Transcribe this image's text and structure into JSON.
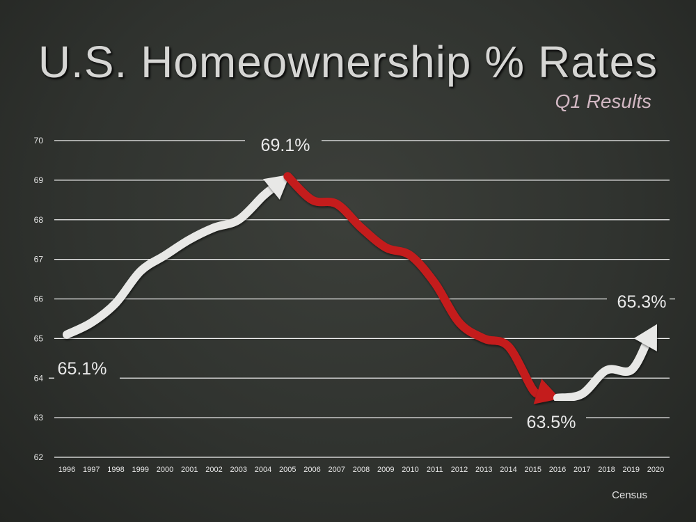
{
  "source": "Census",
  "colors": {
    "rising": "#e8e8e6",
    "falling": "#c41b1b",
    "grid": "#f2f2f2",
    "background": "#30332f"
  },
  "chart_data": {
    "type": "line",
    "title": "U.S. Homeownership % Rates",
    "subtitle": "Q1 Results",
    "xlabel": "",
    "ylabel": "",
    "ylim": [
      62,
      70
    ],
    "yticks": [
      62,
      63,
      64,
      65,
      66,
      67,
      68,
      69,
      70
    ],
    "grid": true,
    "x": [
      "1996",
      "1997",
      "1998",
      "1999",
      "2000",
      "2001",
      "2002",
      "2003",
      "2004",
      "2005",
      "2006",
      "2007",
      "2008",
      "2009",
      "2010",
      "2011",
      "2012",
      "2013",
      "2014",
      "2015",
      "2016",
      "2017",
      "2018",
      "2019",
      "2020"
    ],
    "series": [
      {
        "values": [
          65.1,
          65.4,
          65.9,
          66.7,
          67.1,
          67.5,
          67.8,
          68.0,
          68.6,
          69.1,
          68.5,
          68.4,
          67.8,
          67.3,
          67.1,
          66.4,
          65.4,
          65.0,
          64.8,
          63.7,
          63.5,
          63.6,
          64.2,
          64.2,
          65.3
        ]
      }
    ],
    "segments": [
      {
        "from": "1996",
        "to": "2005",
        "color": "rising",
        "arrow": true
      },
      {
        "from": "2005",
        "to": "2016",
        "color": "falling",
        "arrow": true
      },
      {
        "from": "2016",
        "to": "2020",
        "color": "rising",
        "arrow": true
      }
    ],
    "data_labels": [
      {
        "x": "1996",
        "text": "65.1%"
      },
      {
        "x": "2005",
        "text": "69.1%"
      },
      {
        "x": "2016",
        "text": "63.5%"
      },
      {
        "x": "2020",
        "text": "65.3%"
      }
    ]
  }
}
